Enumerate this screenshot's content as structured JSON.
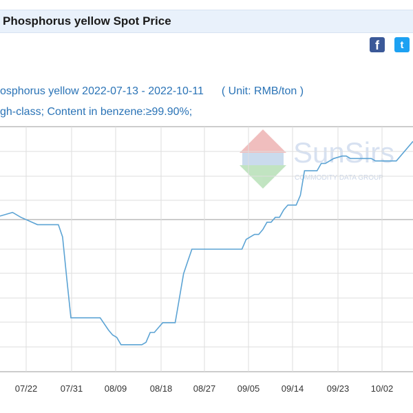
{
  "header": {
    "title": "Phosphorus yellow Spot Price"
  },
  "share": {
    "facebook_glyph": "f",
    "twitter_glyph": "t"
  },
  "chart_data": {
    "type": "line",
    "title": "osphorus yellow 2022-07-13 - 2022-10-11",
    "unit": "( Unit: RMB/ton )",
    "subtitle": "gh-class; Content in benzene:≥99.90%;",
    "x_tick_labels": [
      "07/22",
      "07/31",
      "08/09",
      "08/18",
      "08/27",
      "09/05",
      "09/14",
      "09/23",
      "10/02"
    ],
    "x_range": [
      0,
      99
    ],
    "y_range": [
      0,
      100
    ],
    "series": [
      {
        "color": "#5ba3d4",
        "x": [
          0,
          3,
          5,
          9,
          14,
          15,
          16,
          17,
          18,
          19,
          24,
          26,
          27,
          28,
          29,
          30,
          31,
          32,
          33,
          34,
          35,
          36,
          37,
          38,
          39,
          40,
          41,
          42,
          43,
          44,
          45,
          46,
          47,
          52,
          54,
          56,
          57,
          58,
          59,
          61,
          62,
          63,
          64,
          65,
          66,
          67,
          68,
          69,
          70,
          71,
          72,
          73,
          75,
          76,
          77,
          78,
          80,
          82,
          83,
          84,
          85,
          86,
          88,
          89,
          90,
          95,
          99
        ],
        "y": [
          63.5,
          65,
          63,
          60,
          60,
          55,
          38,
          22,
          22,
          22,
          22,
          17,
          15,
          14,
          11,
          11,
          11,
          11,
          11,
          11,
          12,
          16,
          16,
          18,
          20,
          20,
          20,
          20,
          30,
          40,
          45,
          50,
          50,
          50,
          50,
          50,
          50,
          50,
          54,
          56,
          56,
          58,
          61,
          61,
          63,
          63,
          66,
          68,
          68,
          68,
          72,
          82,
          82,
          82,
          85,
          85,
          87,
          88,
          88,
          87,
          87,
          87,
          87,
          87,
          86,
          86,
          94
        ]
      }
    ]
  },
  "watermark": {
    "brand": "SunSirs",
    "tagline": "COMMODITY DATA GROUP"
  }
}
